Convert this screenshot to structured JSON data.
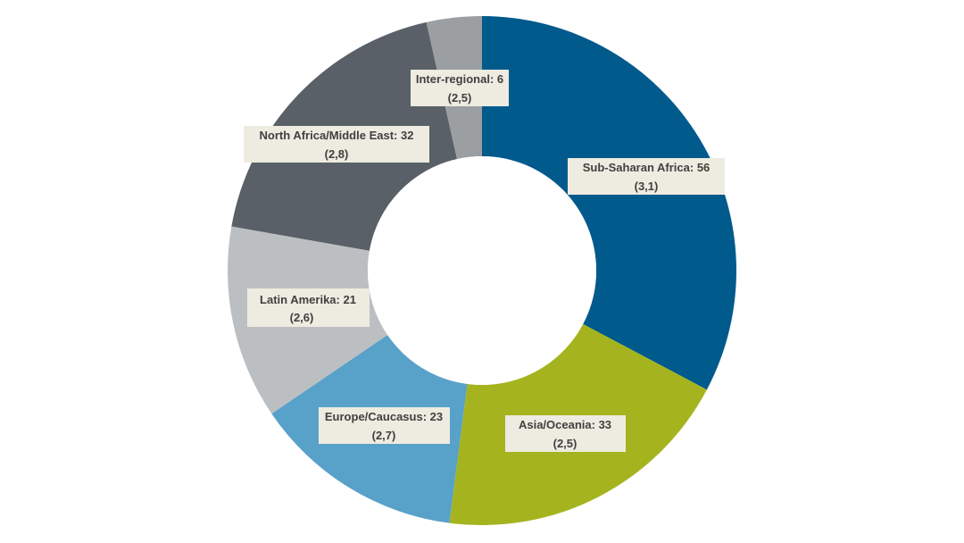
{
  "chart_data": {
    "type": "donut",
    "title": "",
    "slices": [
      {
        "name": "Sub-Saharan Africa",
        "label": "Sub-Saharan Africa: 56",
        "value": 56,
        "sublabel": "(3,1)",
        "color": "#005a8c"
      },
      {
        "name": "Asia/Oceania",
        "label": "Asia/Oceania: 33",
        "value": 33,
        "sublabel": "(2,5)",
        "color": "#a5b41e"
      },
      {
        "name": "Europe/Caucasus",
        "label": "Europe/Caucasus: 23",
        "value": 23,
        "sublabel": "(2,7)",
        "color": "#58a1c9"
      },
      {
        "name": "Latin Amerika",
        "label": "Latin Amerika: 21",
        "value": 21,
        "sublabel": "(2,6)",
        "color": "#bcbfc2"
      },
      {
        "name": "North Africa/Middle East",
        "label": "North Africa/Middle East: 32",
        "value": 32,
        "sublabel": "(2,8)",
        "color": "#596067"
      },
      {
        "name": "Inter-regional",
        "label": "Inter-regional: 6",
        "value": 6,
        "sublabel": "(2,5)",
        "color": "#9c9fa2"
      }
    ],
    "legend": "none",
    "start_angle": "12 o'clock, clockwise"
  }
}
